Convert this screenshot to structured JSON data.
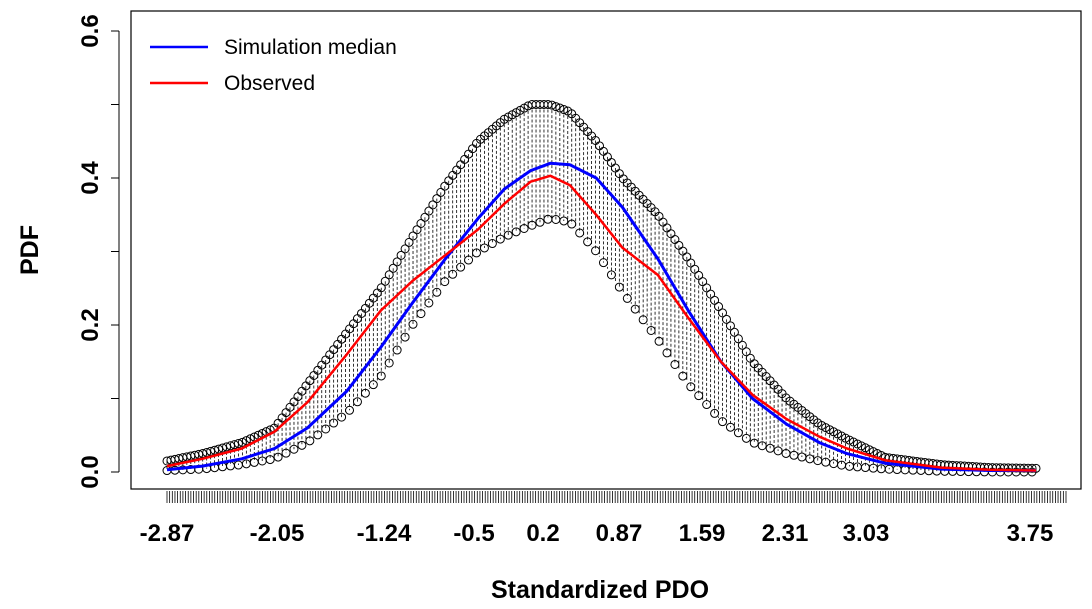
{
  "chart_data": {
    "type": "line",
    "title": "",
    "xlabel": "Standardized PDO",
    "ylabel": "PDF",
    "x_tick_labels": [
      "-2.87",
      "-2.05",
      "-1.24",
      "-0.5",
      "0.2",
      "0.87",
      "1.59",
      "2.31",
      "3.03",
      "3.75"
    ],
    "y_tick_labels": [
      "0.0",
      "0.2",
      "0.4",
      "0.6"
    ],
    "xlim": [
      -3.0,
      4.0
    ],
    "ylim": [
      0.0,
      0.6
    ],
    "grid": false,
    "legend_position": "top-left",
    "series": [
      {
        "name": "Simulation median",
        "color": "#0000ff",
        "x": [
          -2.87,
          -2.6,
          -2.3,
          -2.05,
          -1.8,
          -1.5,
          -1.24,
          -1.0,
          -0.75,
          -0.5,
          -0.3,
          -0.1,
          0.05,
          0.2,
          0.4,
          0.6,
          0.87,
          1.1,
          1.35,
          1.59,
          1.85,
          2.1,
          2.31,
          2.6,
          3.03,
          3.4,
          3.75
        ],
        "y": [
          0.003,
          0.008,
          0.018,
          0.032,
          0.06,
          0.11,
          0.17,
          0.23,
          0.29,
          0.345,
          0.385,
          0.41,
          0.42,
          0.418,
          0.4,
          0.36,
          0.29,
          0.22,
          0.15,
          0.1,
          0.065,
          0.04,
          0.025,
          0.012,
          0.004,
          0.002,
          0.002
        ]
      },
      {
        "name": "Observed",
        "color": "#ff0000",
        "x": [
          -2.87,
          -2.6,
          -2.3,
          -2.05,
          -1.8,
          -1.5,
          -1.24,
          -1.0,
          -0.75,
          -0.5,
          -0.3,
          -0.1,
          0.05,
          0.2,
          0.4,
          0.6,
          0.87,
          1.1,
          1.35,
          1.59,
          1.85,
          2.1,
          2.31,
          2.6,
          3.03,
          3.4,
          3.75
        ],
        "y": [
          0.008,
          0.018,
          0.032,
          0.055,
          0.095,
          0.16,
          0.22,
          0.26,
          0.295,
          0.33,
          0.365,
          0.395,
          0.403,
          0.39,
          0.35,
          0.305,
          0.268,
          0.21,
          0.15,
          0.105,
          0.072,
          0.048,
          0.032,
          0.016,
          0.006,
          0.003,
          0.002
        ]
      }
    ],
    "simulation_envelope": {
      "x": [
        -2.87,
        -2.6,
        -2.3,
        -2.05,
        -1.8,
        -1.5,
        -1.24,
        -1.0,
        -0.75,
        -0.5,
        -0.3,
        -0.1,
        0.05,
        0.2,
        0.4,
        0.6,
        0.87,
        1.1,
        1.35,
        1.59,
        1.85,
        2.1,
        2.31,
        2.6,
        3.03,
        3.4,
        3.75
      ],
      "upper": [
        0.015,
        0.025,
        0.04,
        0.06,
        0.12,
        0.19,
        0.25,
        0.32,
        0.39,
        0.45,
        0.48,
        0.5,
        0.5,
        0.49,
        0.45,
        0.4,
        0.35,
        0.29,
        0.22,
        0.15,
        0.1,
        0.065,
        0.045,
        0.02,
        0.01,
        0.006,
        0.005
      ],
      "lower": [
        0.002,
        0.004,
        0.01,
        0.018,
        0.04,
        0.08,
        0.13,
        0.2,
        0.26,
        0.3,
        0.32,
        0.335,
        0.345,
        0.34,
        0.3,
        0.245,
        0.18,
        0.12,
        0.07,
        0.04,
        0.025,
        0.015,
        0.008,
        0.004,
        0.001,
        0.0,
        0.0
      ]
    }
  }
}
